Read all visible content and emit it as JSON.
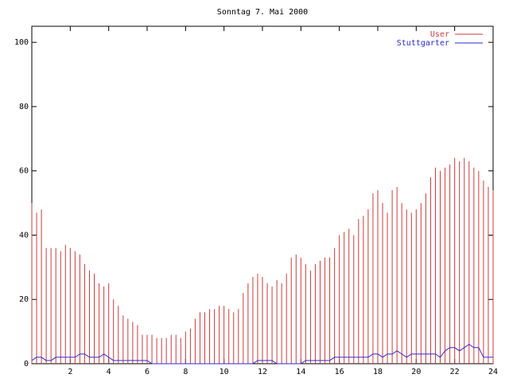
{
  "chart_data": {
    "type": "line",
    "title": "Sonntag 7. Mai 2000",
    "x": [
      0,
      0.25,
      0.5,
      0.75,
      1,
      1.25,
      1.5,
      1.75,
      2,
      2.25,
      2.5,
      2.75,
      3,
      3.25,
      3.5,
      3.75,
      4,
      4.25,
      4.5,
      4.75,
      5,
      5.25,
      5.5,
      5.75,
      6,
      6.25,
      6.5,
      6.75,
      7,
      7.25,
      7.5,
      7.75,
      8,
      8.25,
      8.5,
      8.75,
      9,
      9.25,
      9.5,
      9.75,
      10,
      10.25,
      10.5,
      10.75,
      11,
      11.25,
      11.5,
      11.75,
      12,
      12.25,
      12.5,
      12.75,
      13,
      13.25,
      13.5,
      13.75,
      14,
      14.25,
      14.5,
      14.75,
      15,
      15.25,
      15.5,
      15.75,
      16,
      16.25,
      16.5,
      16.75,
      17,
      17.25,
      17.5,
      17.75,
      18,
      18.25,
      18.5,
      18.75,
      19,
      19.25,
      19.5,
      19.75,
      20,
      20.25,
      20.5,
      20.75,
      21,
      21.25,
      21.5,
      21.75,
      22,
      22.25,
      22.5,
      22.75,
      23,
      23.25,
      23.5,
      23.75,
      24
    ],
    "series": [
      {
        "name": "User",
        "color": "#d03a3a",
        "style": "impulses",
        "values": [
          50,
          47,
          48,
          36,
          36,
          36,
          35,
          37,
          36,
          35,
          34,
          31,
          29,
          28,
          25,
          24,
          25,
          20,
          18,
          15,
          14,
          13,
          12,
          9,
          9,
          9,
          8,
          8,
          8,
          9,
          9,
          8,
          10,
          11,
          14,
          16,
          16,
          17,
          17,
          18,
          18,
          17,
          16,
          17,
          22,
          25,
          27,
          28,
          27,
          25,
          24,
          26,
          25,
          28,
          33,
          34,
          33,
          31,
          29,
          31,
          32,
          33,
          33,
          36,
          40,
          41,
          42,
          40,
          45,
          46,
          48,
          53,
          54,
          50,
          47,
          54,
          55,
          50,
          48,
          47,
          48,
          50,
          53,
          58,
          61,
          60,
          61,
          62,
          64,
          63,
          64,
          63,
          61,
          60,
          57,
          55,
          54
        ]
      },
      {
        "name": "Stuttgarter",
        "color": "#2a2ad8",
        "style": "lines",
        "values": [
          1,
          2,
          2,
          1,
          1,
          2,
          2,
          2,
          2,
          2,
          3,
          3,
          2,
          2,
          2,
          3,
          2,
          1,
          1,
          1,
          1,
          1,
          1,
          1,
          1,
          0,
          0,
          0,
          0,
          0,
          0,
          0,
          0,
          0,
          0,
          0,
          0,
          0,
          0,
          0,
          0,
          0,
          0,
          0,
          0,
          0,
          0,
          1,
          1,
          1,
          1,
          0,
          0,
          0,
          0,
          0,
          0,
          1,
          1,
          1,
          1,
          1,
          1,
          2,
          2,
          2,
          2,
          2,
          2,
          2,
          2,
          3,
          3,
          2,
          3,
          3,
          4,
          3,
          2,
          3,
          3,
          3,
          3,
          3,
          3,
          2,
          4,
          5,
          5,
          4,
          5,
          6,
          5,
          5,
          2,
          2,
          2
        ]
      }
    ],
    "xlim": [
      0,
      24
    ],
    "xticks": [
      2,
      4,
      6,
      8,
      10,
      12,
      14,
      16,
      18,
      20,
      22,
      24
    ],
    "ylim": [
      0,
      105
    ],
    "yticks": [
      0,
      20,
      40,
      60,
      80,
      100
    ],
    "legend": "top-right"
  }
}
